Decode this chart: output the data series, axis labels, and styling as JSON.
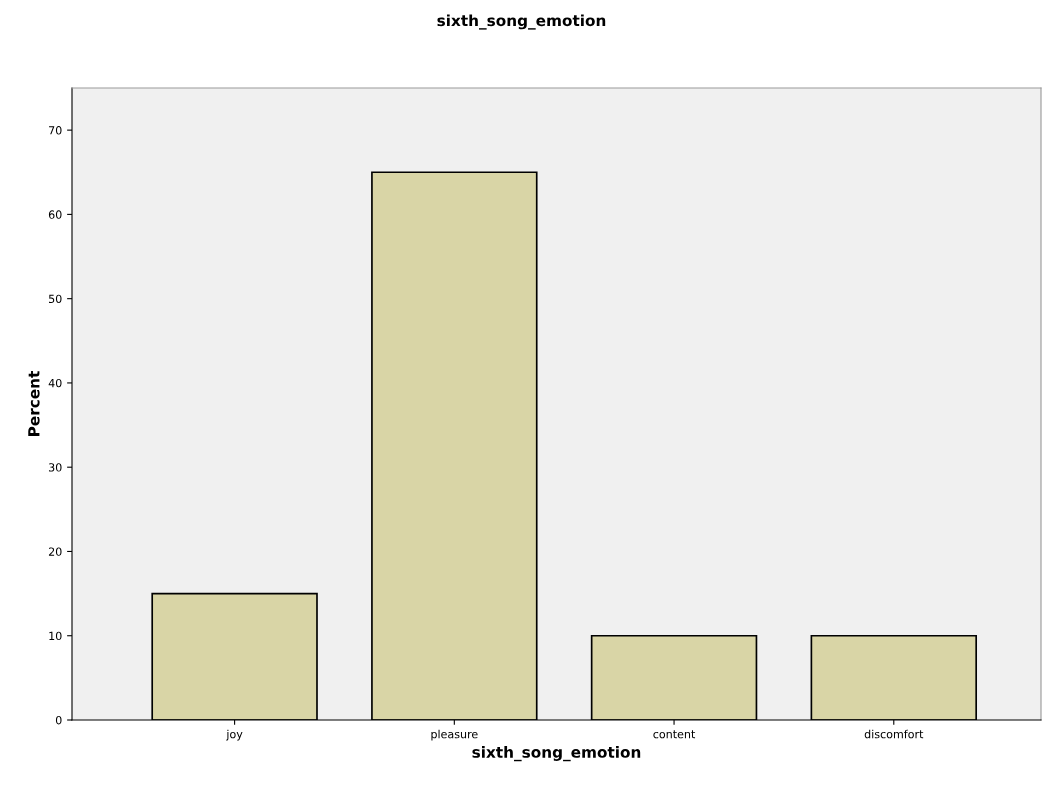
{
  "chart_data": {
    "type": "bar",
    "title": "sixth_song_emotion",
    "xlabel": "sixth_song_emotion",
    "ylabel": "Percent",
    "categories": [
      "joy",
      "pleasure",
      "content",
      "discomfort"
    ],
    "values": [
      15,
      65,
      10,
      10
    ],
    "color": "#d9d5a6",
    "ylim": [
      0,
      75
    ],
    "yticks": [
      0,
      10,
      20,
      30,
      40,
      50,
      60,
      70
    ],
    "grid": false,
    "legend": false
  }
}
